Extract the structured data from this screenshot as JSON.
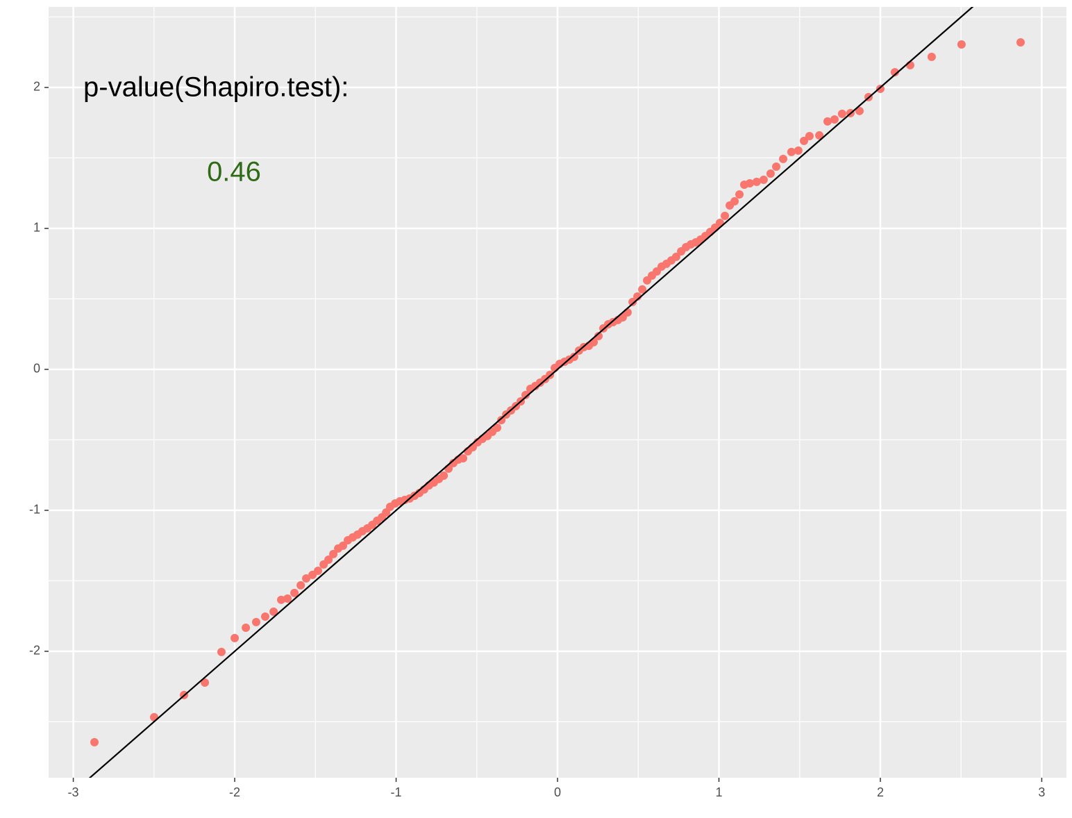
{
  "chart_data": {
    "type": "scatter",
    "x": [
      -2.869,
      -2.499,
      -2.314,
      -2.185,
      -2.082,
      -2.0,
      -1.931,
      -1.867,
      -1.811,
      -1.759,
      -1.712,
      -1.673,
      -1.63,
      -1.591,
      -1.557,
      -1.518,
      -1.484,
      -1.449,
      -1.419,
      -1.389,
      -1.359,
      -1.329,
      -1.299,
      -1.269,
      -1.239,
      -1.209,
      -1.178,
      -1.148,
      -1.118,
      -1.088,
      -1.062,
      -1.037,
      -1.006,
      -0.976,
      -0.946,
      -0.916,
      -0.886,
      -0.856,
      -0.826,
      -0.796,
      -0.766,
      -0.735,
      -0.705,
      -0.675,
      -0.645,
      -0.615,
      -0.585,
      -0.555,
      -0.525,
      -0.495,
      -0.465,
      -0.434,
      -0.404,
      -0.374,
      -0.348,
      -0.318,
      -0.288,
      -0.258,
      -0.228,
      -0.198,
      -0.168,
      -0.138,
      -0.108,
      -0.077,
      -0.047,
      -0.017,
      0.013,
      0.043,
      0.073,
      0.103,
      0.133,
      0.163,
      0.194,
      0.224,
      0.254,
      0.284,
      0.314,
      0.344,
      0.374,
      0.404,
      0.434,
      0.465,
      0.495,
      0.525,
      0.555,
      0.585,
      0.615,
      0.645,
      0.675,
      0.705,
      0.735,
      0.766,
      0.796,
      0.826,
      0.856,
      0.886,
      0.916,
      0.946,
      0.976,
      1.006,
      1.037,
      1.067,
      1.097,
      1.127,
      1.157,
      1.191,
      1.234,
      1.277,
      1.32,
      1.355,
      1.398,
      1.449,
      1.492,
      1.527,
      1.561,
      1.622,
      1.673,
      1.716,
      1.763,
      1.815,
      1.871,
      1.927,
      2.0,
      2.09,
      2.185,
      2.318,
      2.503,
      2.869
    ],
    "values": [
      -2.645,
      -2.468,
      -2.31,
      -2.222,
      -2.005,
      -1.906,
      -1.833,
      -1.793,
      -1.754,
      -1.719,
      -1.635,
      -1.626,
      -1.586,
      -1.532,
      -1.483,
      -1.458,
      -1.429,
      -1.384,
      -1.35,
      -1.31,
      -1.271,
      -1.251,
      -1.212,
      -1.192,
      -1.172,
      -1.148,
      -1.128,
      -1.103,
      -1.074,
      -1.049,
      -1.015,
      -0.975,
      -0.951,
      -0.936,
      -0.926,
      -0.916,
      -0.897,
      -0.877,
      -0.852,
      -0.823,
      -0.803,
      -0.778,
      -0.754,
      -0.704,
      -0.665,
      -0.64,
      -0.631,
      -0.581,
      -0.552,
      -0.517,
      -0.493,
      -0.473,
      -0.443,
      -0.414,
      -0.36,
      -0.32,
      -0.291,
      -0.261,
      -0.227,
      -0.182,
      -0.138,
      -0.118,
      -0.094,
      -0.069,
      -0.039,
      0.01,
      0.039,
      0.054,
      0.069,
      0.089,
      0.133,
      0.158,
      0.167,
      0.192,
      0.236,
      0.291,
      0.32,
      0.335,
      0.35,
      0.369,
      0.404,
      0.478,
      0.517,
      0.567,
      0.631,
      0.665,
      0.695,
      0.729,
      0.749,
      0.773,
      0.798,
      0.837,
      0.867,
      0.887,
      0.901,
      0.921,
      0.946,
      0.975,
      1.005,
      1.039,
      1.089,
      1.163,
      1.192,
      1.241,
      1.31,
      1.32,
      1.33,
      1.345,
      1.389,
      1.438,
      1.493,
      1.542,
      1.552,
      1.621,
      1.655,
      1.66,
      1.759,
      1.773,
      1.813,
      1.818,
      1.833,
      1.931,
      1.99,
      2.108,
      2.158,
      2.217,
      2.305,
      2.32
    ],
    "color": "#F8766D",
    "reference_line": {
      "slope": 1,
      "intercept": 0,
      "color": "#000000"
    },
    "annotations": [
      {
        "text": "p-value(Shapiro.test):",
        "color": "#000000"
      },
      {
        "text": "0.46",
        "color": "#2E6B14"
      }
    ],
    "xlim": [
      -3.153,
      3.153
    ],
    "ylim": [
      -2.897,
      2.571
    ],
    "xticks": [
      -3,
      -2,
      -1,
      0,
      1,
      2,
      3
    ],
    "yticks": [
      -2,
      -1,
      0,
      1,
      2
    ],
    "x_minor": [
      -2.5,
      -1.5,
      -0.5,
      0.5,
      1.5,
      2.5
    ],
    "y_minor": [
      -2.5,
      -1.5,
      -0.5,
      0.5,
      1.5,
      2.5
    ],
    "grid": true
  }
}
